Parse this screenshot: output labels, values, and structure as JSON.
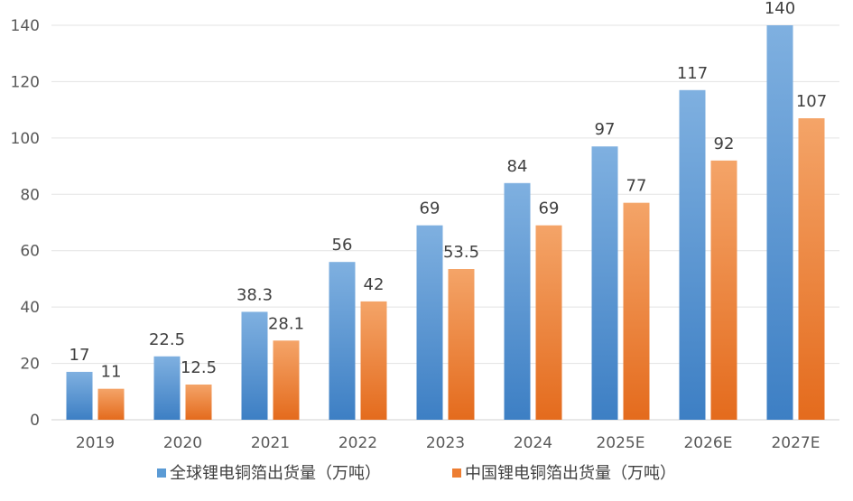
{
  "chart_data": {
    "type": "bar",
    "categories": [
      "2019",
      "2020",
      "2021",
      "2022",
      "2023",
      "2024",
      "2025E",
      "2026E",
      "2027E"
    ],
    "series": [
      {
        "name": "全球锂电铜箔出货量（万吨）",
        "values": [
          17,
          22.5,
          38.3,
          56,
          69,
          84,
          97,
          117,
          140
        ],
        "color": "#5b9bd5"
      },
      {
        "name": "中国锂电铜箔出货量（万吨）",
        "values": [
          11,
          12.5,
          28.1,
          42,
          53.5,
          69,
          77,
          92,
          107
        ],
        "color": "#ed7d31"
      }
    ],
    "data_labels": [
      [
        "17",
        "22.5",
        "38.3",
        "56",
        "69",
        "84",
        "97",
        "117",
        "140"
      ],
      [
        "11",
        "12.5",
        "28.1",
        "42",
        "53.5",
        "69",
        "77",
        "92",
        "107"
      ]
    ],
    "ylim": [
      0,
      140
    ],
    "yticks": [
      "0",
      "20",
      "40",
      "60",
      "80",
      "100",
      "120",
      "140"
    ],
    "grid": true,
    "legend_position": "bottom"
  }
}
